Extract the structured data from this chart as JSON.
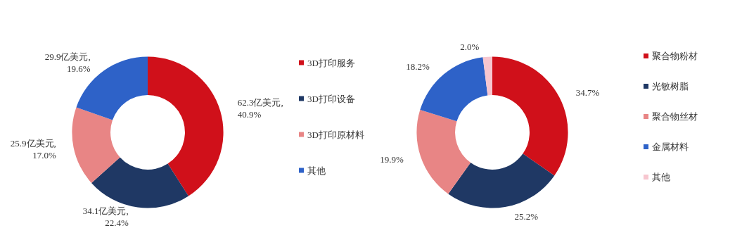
{
  "chart_data": [
    {
      "type": "donut",
      "categories": [
        "3D打印服务",
        "3D打印设备",
        "3D打印原材料",
        "其他"
      ],
      "values": [
        62.3,
        34.1,
        25.9,
        29.9
      ],
      "colors": [
        "#d0101a",
        "#1f3864",
        "#e88585",
        "#2e62c8"
      ],
      "value_labels": [
        "62.3亿美元,\n40.9%",
        "34.1亿美元,\n22.4%",
        "25.9亿美元,\n17.0%",
        "29.9亿美元,\n19.6%"
      ],
      "legend": "right"
    },
    {
      "type": "donut",
      "categories": [
        "聚合物粉材",
        "光敏树脂",
        "聚合物丝材",
        "金属材料",
        "其他"
      ],
      "values": [
        34.7,
        25.2,
        19.9,
        18.2,
        2.0
      ],
      "colors": [
        "#d0101a",
        "#1f3864",
        "#e88585",
        "#2e62c8",
        "#f7c6cf"
      ],
      "value_labels": [
        "34.7%",
        "25.2%",
        "19.9%",
        "18.2%",
        "2.0%"
      ],
      "legend": "right"
    }
  ]
}
